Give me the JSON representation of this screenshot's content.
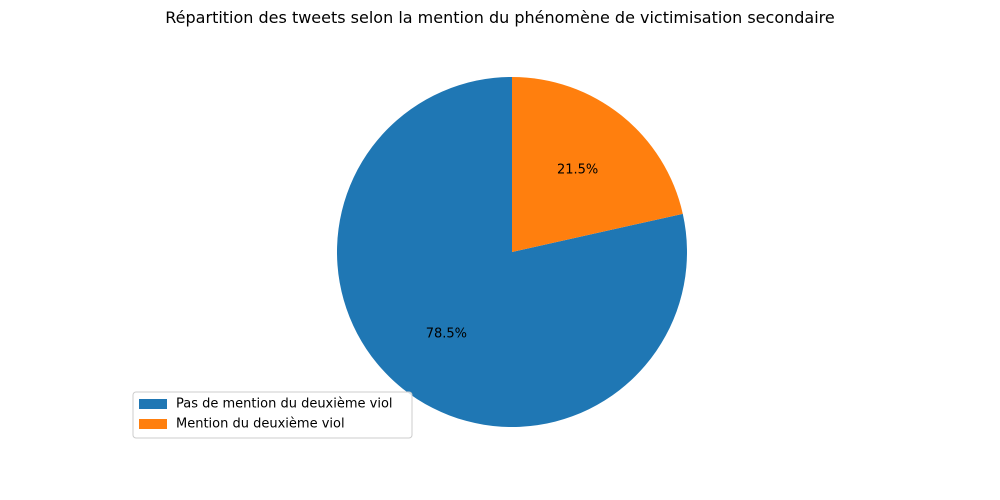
{
  "chart_data": {
    "type": "pie",
    "title": "Répartition des tweets selon la mention du phénomène de victimisation secondaire",
    "slices": [
      {
        "label": "Pas de mention du deuxième viol",
        "value": 78.5,
        "display": "78.5%",
        "color": "#1f77b4"
      },
      {
        "label": "Mention du deuxième viol",
        "value": 21.5,
        "display": "21.5%",
        "color": "#ff7f0e"
      }
    ],
    "start_angle_deg": 90,
    "direction": "counterclockwise",
    "legend_position": "lower-left"
  }
}
